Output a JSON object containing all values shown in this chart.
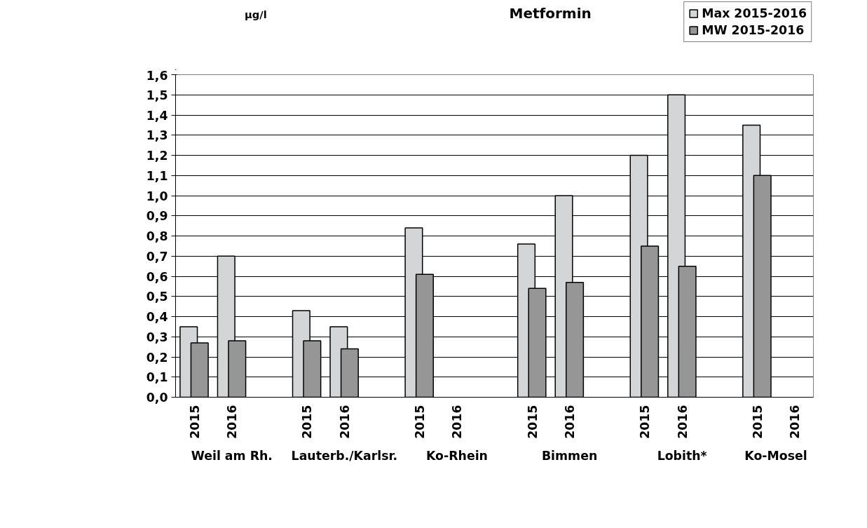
{
  "chart_data": {
    "type": "bar",
    "title": "Metformin",
    "ylabel": "µg/l",
    "categories": [
      "2015",
      "2016",
      null,
      "2015",
      "2016",
      null,
      "2015",
      "2016",
      null,
      "2015",
      "2016",
      null,
      "2015",
      "2016",
      null,
      "2015",
      "2016"
    ],
    "series": [
      {
        "name": "Max 2015-2016",
        "color": "#d4d5d7",
        "values": [
          0.35,
          0.7,
          null,
          0.43,
          0.35,
          null,
          0.84,
          null,
          null,
          0.76,
          1.0,
          null,
          1.2,
          1.5,
          null,
          1.35,
          null
        ]
      },
      {
        "name": "MW 2015-2016",
        "color": "#969696",
        "values": [
          0.27,
          0.28,
          null,
          0.28,
          0.24,
          null,
          0.61,
          null,
          null,
          0.54,
          0.57,
          null,
          0.75,
          0.65,
          null,
          1.1,
          null
        ]
      }
    ],
    "annotations": [
      "Weil am Rh.",
      "Lauterb./Karlsr.",
      "Ko-Rhein",
      "Bimmen",
      "Lobith*",
      "Ko-Mosel"
    ],
    "ylim": [
      0,
      1.6
    ],
    "yticks": [
      {
        "value": 0,
        "label": "0,0"
      },
      {
        "value": 0.1,
        "label": "0,1"
      },
      {
        "value": 0.2,
        "label": "0,2"
      },
      {
        "value": 0.3,
        "label": "0,3"
      },
      {
        "value": 0.4,
        "label": "0,4"
      },
      {
        "value": 0.5,
        "label": "0,5"
      },
      {
        "value": 0.6,
        "label": "0,6"
      },
      {
        "value": 0.7,
        "label": "0,7"
      },
      {
        "value": 0.8,
        "label": "0,8"
      },
      {
        "value": 0.9,
        "label": "0,9"
      },
      {
        "value": 1.0,
        "label": "1,0"
      },
      {
        "value": 1.1,
        "label": "1,1"
      },
      {
        "value": 1.2,
        "label": "1,2"
      },
      {
        "value": 1.3,
        "label": "1,3"
      },
      {
        "value": 1.4,
        "label": "1,4"
      },
      {
        "value": 1.5,
        "label": "1,5"
      },
      {
        "value": 1.6,
        "label": "1,6"
      }
    ],
    "grid": "y",
    "legend": "top right"
  }
}
